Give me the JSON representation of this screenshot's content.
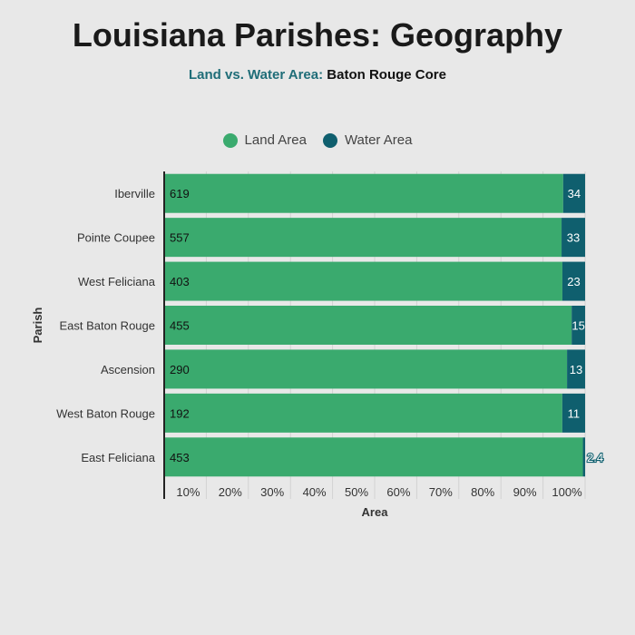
{
  "title": "Louisiana Parishes: Geography",
  "subtitle": {
    "lead": "Land vs. Water Area:",
    "rest": "Baton Rouge Core"
  },
  "colors": {
    "land": "#3aaa6e",
    "water": "#0f5f6e",
    "accent": "#1f6d78"
  },
  "chart_data": {
    "type": "bar",
    "orientation": "horizontal",
    "stacked": "percent",
    "categories": [
      "Iberville",
      "Pointe Coupee",
      "West Feliciana",
      "East Baton Rouge",
      "Ascension",
      "West Baton Rouge",
      "East Feliciana"
    ],
    "series": [
      {
        "name": "Land Area",
        "values": [
          619,
          557,
          403,
          455,
          290,
          192,
          453
        ]
      },
      {
        "name": "Water Area",
        "values": [
          34,
          33,
          23,
          15,
          13,
          11,
          2.4
        ]
      }
    ],
    "xlabel": "Area",
    "ylabel": "Parish",
    "xticks": [
      "10%",
      "20%",
      "30%",
      "40%",
      "50%",
      "60%",
      "70%",
      "80%",
      "90%",
      "100%"
    ],
    "legend": "top-center",
    "grid": "vertical"
  }
}
